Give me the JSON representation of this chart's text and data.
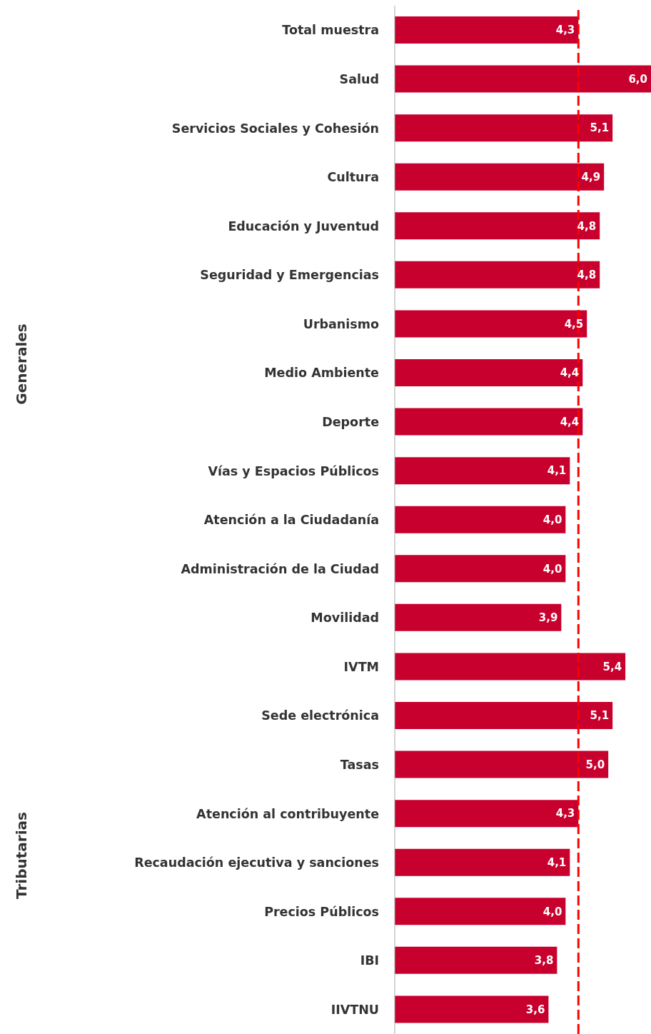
{
  "chart_data": {
    "type": "bar",
    "orientation": "horizontal",
    "categories": [
      "Total muestra",
      "Salud",
      "Servicios Sociales y Cohesión",
      "Cultura",
      "Educación y Juventud",
      "Seguridad y Emergencias",
      "Urbanismo",
      "Medio Ambiente",
      "Deporte",
      "Vías y Espacios Públicos",
      "Atención a la Ciudadanía",
      "Administración de la Ciudad",
      "Movilidad",
      "IVTM",
      "Sede electrónica",
      "Tasas",
      "Atención al contribuyente",
      "Recaudación ejecutiva y sanciones",
      "Precios Públicos",
      "IBI",
      "IIVTNU"
    ],
    "values": [
      4.3,
      6.0,
      5.1,
      4.9,
      4.8,
      4.8,
      4.5,
      4.4,
      4.4,
      4.1,
      4.0,
      4.0,
      3.9,
      5.4,
      5.1,
      5.0,
      4.3,
      4.1,
      4.0,
      3.8,
      3.6
    ],
    "value_labels": [
      "4,3",
      "6,0",
      "5,1",
      "4,9",
      "4,8",
      "4,8",
      "4,5",
      "4,4",
      "4,4",
      "4,1",
      "4,0",
      "4,0",
      "3,9",
      "5,4",
      "5,1",
      "5,0",
      "4,3",
      "4,1",
      "4,0",
      "3,8",
      "3,6"
    ],
    "color": "#c8002d",
    "ref_lines": [
      {
        "axis": "x",
        "value": 4.3,
        "color": "#ff0000",
        "line_style": "dashed"
      }
    ],
    "annotations": [
      "Generales",
      "Tributarias"
    ]
  }
}
